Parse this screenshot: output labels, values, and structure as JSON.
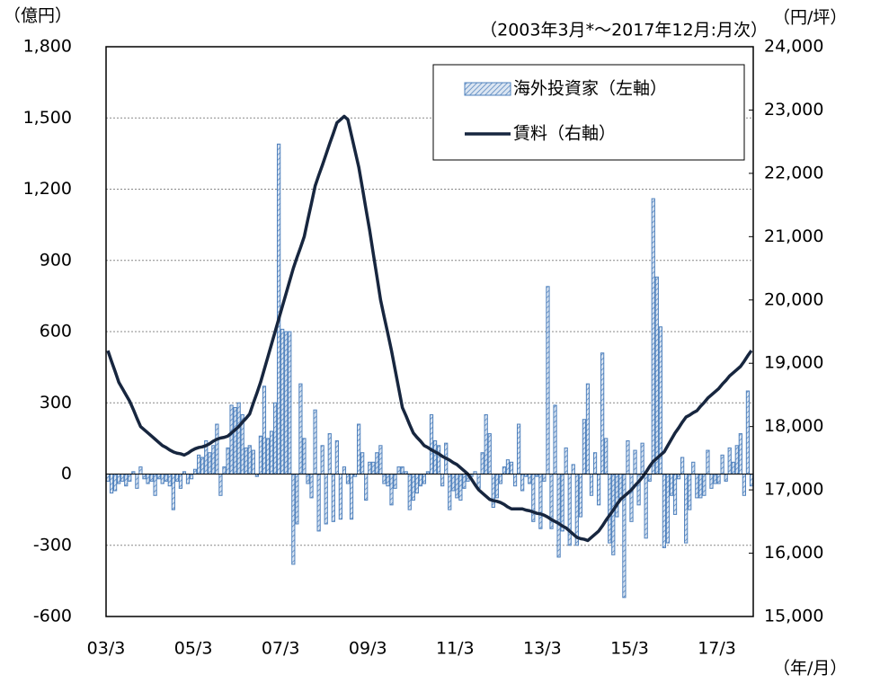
{
  "chart_data": {
    "type": "bar-line",
    "subtitle": "（2003年3月*～2017年12月:月次）",
    "y_axis_label": "（億円）",
    "y2_axis_label": "（円/坪）",
    "x_axis_label": "（年/月）",
    "categories": [
      "03/3",
      null,
      null,
      null,
      null,
      null,
      null,
      null,
      null,
      null,
      null,
      null,
      null,
      null,
      null,
      null,
      null,
      null,
      null,
      null,
      null,
      null,
      null,
      null,
      "05/3",
      null,
      null,
      null,
      null,
      null,
      null,
      null,
      null,
      null,
      null,
      null,
      null,
      null,
      null,
      null,
      null,
      null,
      null,
      null,
      null,
      null,
      null,
      null,
      "07/3",
      null,
      null,
      null,
      null,
      null,
      null,
      null,
      null,
      null,
      null,
      null,
      null,
      null,
      null,
      null,
      null,
      null,
      null,
      null,
      null,
      null,
      null,
      null,
      "09/3",
      null,
      null,
      null,
      null,
      null,
      null,
      null,
      null,
      null,
      null,
      null,
      null,
      null,
      null,
      null,
      null,
      null,
      null,
      null,
      null,
      null,
      null,
      null,
      "11/3",
      null,
      null,
      null,
      null,
      null,
      null,
      null,
      null,
      null,
      null,
      null,
      null,
      null,
      null,
      null,
      null,
      null,
      null,
      null,
      null,
      null,
      null,
      null,
      "13/3",
      null,
      null,
      null,
      null,
      null,
      null,
      null,
      null,
      null,
      null,
      null,
      null,
      null,
      null,
      null,
      null,
      null,
      null,
      null,
      null,
      null,
      null,
      null,
      "15/3",
      null,
      null,
      null,
      null,
      null,
      null,
      null,
      null,
      null,
      null,
      null,
      null,
      null,
      null,
      null,
      null,
      null,
      null,
      null,
      null,
      null,
      null,
      null,
      "17/3",
      null,
      null,
      null,
      null,
      null,
      null,
      null,
      null,
      null
    ],
    "series": [
      {
        "name": "海外投資家（左軸）",
        "type": "bar",
        "axis": "y",
        "color": "#4f81bd",
        "values": [
          -30,
          -80,
          -70,
          -40,
          -30,
          -50,
          -30,
          10,
          -60,
          30,
          -20,
          -40,
          -30,
          -90,
          -20,
          -40,
          -30,
          -50,
          -150,
          -30,
          -60,
          10,
          -40,
          -20,
          20,
          80,
          70,
          140,
          90,
          120,
          210,
          -90,
          30,
          110,
          290,
          280,
          300,
          250,
          110,
          120,
          100,
          -10,
          160,
          370,
          150,
          180,
          300,
          1390,
          610,
          600,
          600,
          -380,
          -210,
          380,
          150,
          -40,
          -100,
          270,
          -240,
          120,
          -210,
          170,
          -200,
          140,
          -190,
          30,
          -40,
          -190,
          -10,
          210,
          90,
          -110,
          50,
          50,
          90,
          120,
          -40,
          -50,
          -130,
          -60,
          30,
          30,
          10,
          -150,
          -110,
          -80,
          -50,
          -40,
          10,
          250,
          140,
          120,
          -50,
          130,
          -150,
          -70,
          -100,
          -110,
          -60,
          -30,
          -10,
          10,
          -60,
          90,
          250,
          170,
          -140,
          -100,
          -40,
          30,
          60,
          50,
          -50,
          210,
          -70,
          -10,
          -40,
          -200,
          -10,
          -230,
          -30,
          790,
          -230,
          290,
          -350,
          -240,
          110,
          -300,
          40,
          -300,
          -180,
          230,
          380,
          -90,
          90,
          -130,
          510,
          150,
          -290,
          -340,
          -180,
          -100,
          -520,
          140,
          -200,
          100,
          -130,
          130,
          -270,
          -30,
          1160,
          830,
          620,
          -310,
          -290,
          -90,
          -170,
          -20,
          70,
          -290,
          -150,
          50,
          -100,
          -100,
          -90,
          100,
          -60,
          -40,
          -40,
          80,
          -30,
          110,
          50,
          120,
          170,
          -90,
          350,
          -50
        ]
      },
      {
        "name": "賃料（右軸）",
        "type": "line",
        "axis": "y2",
        "color": "#17263f",
        "values": [
          19200,
          19030,
          18870,
          18700,
          18600,
          18500,
          18400,
          18270,
          18130,
          18000,
          17950,
          17900,
          17850,
          17800,
          17750,
          17700,
          17670,
          17630,
          17600,
          17580,
          17570,
          17550,
          17580,
          17620,
          17650,
          17670,
          17680,
          17700,
          17730,
          17770,
          17800,
          17820,
          17830,
          17850,
          17900,
          17950,
          18000,
          18070,
          18130,
          18200,
          18370,
          18530,
          18700,
          18900,
          19100,
          19300,
          19500,
          19700,
          19900,
          20100,
          20300,
          20500,
          20670,
          20830,
          21000,
          21270,
          21530,
          21800,
          21970,
          22130,
          22300,
          22470,
          22630,
          22800,
          22850,
          22900,
          22850,
          22600,
          22350,
          22100,
          21770,
          21430,
          21100,
          20730,
          20370,
          20000,
          19730,
          19470,
          19200,
          18900,
          18600,
          18300,
          18170,
          18030,
          17900,
          17830,
          17770,
          17700,
          17670,
          17630,
          17600,
          17570,
          17530,
          17500,
          17470,
          17430,
          17400,
          17350,
          17300,
          17250,
          17170,
          17080,
          17000,
          16950,
          16900,
          16850,
          16830,
          16820,
          16800,
          16770,
          16730,
          16700,
          16700,
          16700,
          16700,
          16680,
          16670,
          16650,
          16630,
          16620,
          16600,
          16570,
          16530,
          16500,
          16470,
          16430,
          16400,
          16350,
          16300,
          16250,
          16230,
          16220,
          16200,
          16250,
          16300,
          16350,
          16430,
          16520,
          16600,
          16680,
          16770,
          16850,
          16900,
          16950,
          17000,
          17070,
          17130,
          17200,
          17280,
          17370,
          17450,
          17500,
          17550,
          17600,
          17700,
          17800,
          17900,
          17980,
          18070,
          18150,
          18180,
          18220,
          18250,
          18320,
          18380,
          18450,
          18500,
          18550,
          18600,
          18670,
          18730,
          18800,
          18850,
          18900,
          18950,
          19030,
          19120,
          19200
        ]
      }
    ],
    "ylim": [
      -600,
      1800
    ],
    "yticks": [
      -600,
      -300,
      0,
      300,
      600,
      900,
      {
        "value": 1200,
        "label": "1,200"
      },
      {
        "value": 1500,
        "label": "1,500"
      },
      {
        "value": 1800,
        "label": "1,800"
      }
    ],
    "y2lim": [
      15000,
      24000
    ],
    "y2ticks": [
      {
        "value": 15000,
        "label": "15,000"
      },
      {
        "value": 16000,
        "label": "16,000"
      },
      {
        "value": 17000,
        "label": "17,000"
      },
      {
        "value": 18000,
        "label": "18,000"
      },
      {
        "value": 19000,
        "label": "19,000"
      },
      {
        "value": 20000,
        "label": "20,000"
      },
      {
        "value": 21000,
        "label": "21,000"
      },
      {
        "value": 22000,
        "label": "22,000"
      },
      {
        "value": 23000,
        "label": "23,000"
      },
      {
        "value": 24000,
        "label": "24,000"
      }
    ],
    "grid": true,
    "legend": "top-right"
  }
}
